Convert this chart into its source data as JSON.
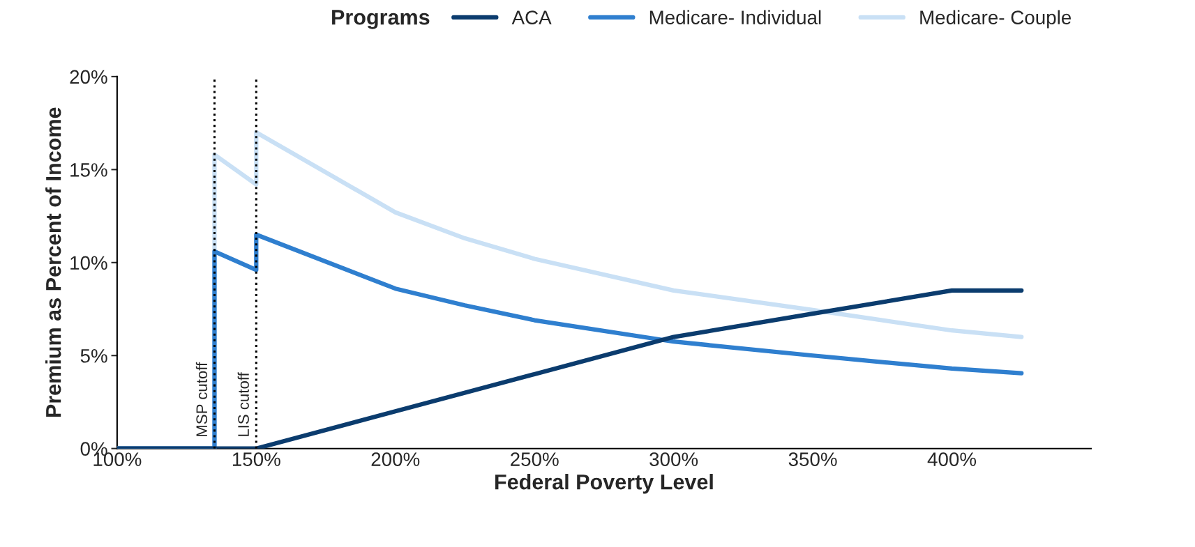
{
  "chart_data": {
    "type": "line",
    "xlabel": "Federal Poverty Level",
    "ylabel": "Premium as Percent of Income",
    "legend_title": "Programs",
    "legend": "top",
    "grid": false,
    "line_style": "solid",
    "marker": "none",
    "xlim": [
      100,
      450
    ],
    "xticks": [
      {
        "value": 100,
        "label": "100%"
      },
      {
        "value": 150,
        "label": "150%"
      },
      {
        "value": 200,
        "label": "200%"
      },
      {
        "value": 250,
        "label": "250%"
      },
      {
        "value": 300,
        "label": "300%"
      },
      {
        "value": 350,
        "label": "350%"
      },
      {
        "value": 400,
        "label": "400%"
      }
    ],
    "ylim": [
      0,
      20
    ],
    "yticks": [
      {
        "value": 0,
        "label": "0%"
      },
      {
        "value": 5,
        "label": "5%"
      },
      {
        "value": 10,
        "label": "10%"
      },
      {
        "value": 15,
        "label": "15%"
      },
      {
        "value": 20,
        "label": "20%"
      }
    ],
    "series": [
      {
        "name": "ACA",
        "color": "#0b3c6e",
        "x": [
          100,
          150,
          200,
          250,
          300,
          350,
          400,
          425
        ],
        "values": [
          0,
          0,
          2,
          4,
          6,
          7.25,
          8.5,
          8.5
        ]
      },
      {
        "name": "Medicare- Individual",
        "color": "#2f7fcf",
        "x": [
          100,
          135,
          135,
          150,
          150,
          200,
          225,
          250,
          300,
          350,
          400,
          425
        ],
        "values": [
          0,
          0,
          10.6,
          9.6,
          11.5,
          8.6,
          7.7,
          6.9,
          5.75,
          5.0,
          4.3,
          4.05
        ]
      },
      {
        "name": "Medicare- Couple",
        "color": "#c9e0f5",
        "x": [
          100,
          135,
          135,
          150,
          150,
          200,
          225,
          250,
          300,
          350,
          400,
          425
        ],
        "values": [
          0,
          0,
          15.8,
          14.2,
          17.0,
          12.7,
          11.3,
          10.2,
          8.5,
          7.45,
          6.35,
          6.0
        ]
      }
    ],
    "ref_lines": [
      {
        "axis": "x",
        "value": 135,
        "label": "MSP cutoff",
        "color": "#000000",
        "line_style": "dotted"
      },
      {
        "axis": "x",
        "value": 150,
        "label": "LIS cutoff",
        "color": "#000000",
        "line_style": "dotted"
      }
    ]
  }
}
